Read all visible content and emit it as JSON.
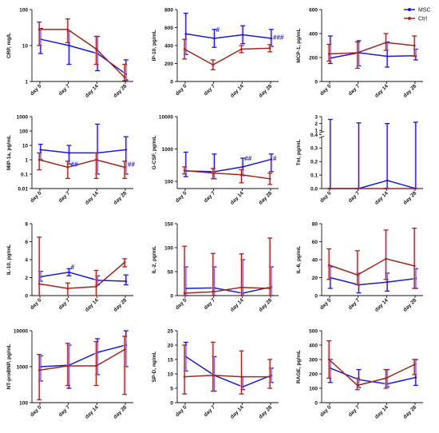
{
  "colors": {
    "MSC": "#1a1adb",
    "Ctrl": "#a0281e",
    "shade": "#f3c6de"
  },
  "legend": [
    {
      "name": "MSC",
      "color": "#1a1adb"
    },
    {
      "name": "Ctrl",
      "color": "#a0281e"
    }
  ],
  "chart_data": [
    {
      "type": "line",
      "ylabel": "CRP, mg/L",
      "scale": "log",
      "ylim": [
        1,
        100
      ],
      "yticks": [
        1,
        10,
        100
      ],
      "ytick_labels": [
        "1",
        "10",
        "100"
      ],
      "categories": [
        "day 0",
        "day 7",
        "day 14",
        "day 28"
      ],
      "series": [
        {
          "name": "MSC",
          "values": [
            15,
            10,
            6,
            1.6
          ],
          "upper": [
            30,
            25,
            18,
            4
          ],
          "lower": [
            6,
            3,
            2,
            1.1
          ]
        },
        {
          "name": "Ctrl",
          "values": [
            28,
            28,
            8,
            1.3
          ],
          "upper": [
            45,
            55,
            18,
            3
          ],
          "lower": [
            10,
            12,
            3,
            1.05
          ]
        }
      ],
      "annotations": []
    },
    {
      "type": "line",
      "ylabel": "IP-10, pg/mL",
      "scale": "linear",
      "ylim": [
        0,
        800
      ],
      "yticks": [
        0,
        200,
        400,
        600,
        800
      ],
      "ytick_labels": [
        "0",
        "200",
        "400",
        "600",
        "800"
      ],
      "categories": [
        "day 0",
        "day 7",
        "day 14",
        "day 28"
      ],
      "series": [
        {
          "name": "MSC",
          "values": [
            530,
            480,
            520,
            480
          ],
          "upper": [
            760,
            580,
            620,
            580
          ],
          "lower": [
            300,
            380,
            420,
            390
          ]
        },
        {
          "name": "Ctrl",
          "values": [
            360,
            185,
            360,
            370
          ],
          "upper": [
            470,
            240,
            400,
            410
          ],
          "lower": [
            250,
            130,
            320,
            330
          ]
        }
      ],
      "annotations": [
        {
          "text": "#",
          "cat": 1,
          "y": 580
        },
        {
          "text": "###",
          "cat": 3,
          "y": 495
        }
      ]
    },
    {
      "type": "line",
      "ylabel": "MCP-1, pg/mL",
      "scale": "linear",
      "ylim": [
        0,
        600
      ],
      "yticks": [
        0,
        200,
        400,
        600
      ],
      "ytick_labels": [
        "0",
        "200",
        "400",
        "600"
      ],
      "categories": [
        "day 0",
        "day 7",
        "day 14",
        "day 28"
      ],
      "series": [
        {
          "name": "MSC",
          "values": [
            195,
            240,
            210,
            215
          ],
          "upper": [
            380,
            340,
            330,
            270
          ],
          "lower": [
            150,
            130,
            120,
            180
          ]
        },
        {
          "name": "Ctrl",
          "values": [
            230,
            240,
            325,
            300
          ],
          "upper": [
            310,
            330,
            400,
            380
          ],
          "lower": [
            170,
            110,
            260,
            210
          ]
        }
      ],
      "annotations": []
    },
    {
      "type": "line",
      "ylabel": "MIP-1a, pg/mL",
      "scale": "log",
      "ylim": [
        0.01,
        1000
      ],
      "yticks": [
        0.01,
        0.1,
        1,
        10,
        100,
        1000
      ],
      "ytick_labels": [
        "0.01",
        "0.1",
        "1",
        "10",
        "100",
        "1000"
      ],
      "categories": [
        "day 0",
        "day 7",
        "day 14",
        "day 28"
      ],
      "series": [
        {
          "name": "MSC",
          "values": [
            5,
            3,
            3,
            5
          ],
          "upper": [
            12,
            10,
            300,
            40
          ],
          "lower": [
            1,
            0.5,
            0.1,
            0.1
          ]
        },
        {
          "name": "Ctrl",
          "values": [
            1,
            0.3,
            1,
            0.3
          ],
          "upper": [
            3,
            0.8,
            3,
            0.8
          ],
          "lower": [
            0.2,
            0.05,
            0.05,
            0.05
          ]
        }
      ],
      "annotations": [
        {
          "text": "##",
          "cat": 1,
          "y": 0.5
        },
        {
          "text": "##",
          "cat": 3,
          "y": 0.5
        }
      ]
    },
    {
      "type": "line",
      "ylabel": "G-CSF, pg/mL",
      "scale": "log",
      "ylim": [
        60,
        10000
      ],
      "yticks": [
        100,
        1000,
        10000
      ],
      "ytick_labels": [
        "100",
        "1000",
        "10000"
      ],
      "categories": [
        "day 0",
        "day 7",
        "day 14",
        "day 28"
      ],
      "series": [
        {
          "name": "MSC",
          "values": [
            210,
            200,
            280,
            480
          ],
          "upper": [
            800,
            700,
            520,
            700
          ],
          "lower": [
            140,
            120,
            150,
            200
          ]
        },
        {
          "name": "Ctrl",
          "values": [
            215,
            180,
            160,
            120
          ],
          "upper": [
            280,
            250,
            230,
            180
          ],
          "lower": [
            170,
            120,
            90,
            80
          ]
        }
      ],
      "annotations": [
        {
          "text": "##",
          "cat": 2,
          "y": 520
        },
        {
          "text": "#",
          "cat": 3,
          "y": 520
        }
      ]
    },
    {
      "type": "line",
      "ylabel": "TnI, pg/mL",
      "scale": "broken",
      "ylim": [
        0,
        3
      ],
      "break": {
        "low_max": 0.4,
        "high_min": 0.4,
        "high_max": 3,
        "split": 0.75
      },
      "yticks": [
        0,
        0.1,
        0.2,
        0.3,
        0.4,
        1,
        2,
        3
      ],
      "ytick_labels": [
        "0.0",
        "0.1",
        "0.2",
        "0.3",
        "0.4",
        "1",
        "2",
        "3"
      ],
      "categories": [
        "day 0",
        "day 7",
        "day 14",
        "day 28"
      ],
      "series": [
        {
          "name": "MSC",
          "values": [
            0,
            0,
            0.06,
            0
          ],
          "upper": [
            2.6,
            2.1,
            2.0,
            2.2
          ],
          "lower": [
            0,
            0,
            0,
            0
          ]
        },
        {
          "name": "Ctrl",
          "values": [
            0,
            0,
            0,
            0
          ],
          "upper": [
            0,
            0,
            0,
            0
          ],
          "lower": [
            0,
            0,
            0,
            0
          ]
        }
      ],
      "annotations": []
    },
    {
      "type": "line",
      "ylabel": "IL-10, pg/mL",
      "scale": "linear",
      "ylim": [
        0,
        8
      ],
      "yticks": [
        0,
        2,
        4,
        6,
        8
      ],
      "ytick_labels": [
        "0",
        "2",
        "4",
        "6",
        "8"
      ],
      "categories": [
        "day 0",
        "day 7",
        "day 14",
        "day 28"
      ],
      "series": [
        {
          "name": "MSC",
          "values": [
            2.1,
            2.6,
            1.7,
            1.6
          ],
          "upper": [
            2.7,
            3.0,
            2.2,
            2.3
          ],
          "lower": [
            1.6,
            2.2,
            1.2,
            1.2
          ]
        },
        {
          "name": "Ctrl",
          "values": [
            1.3,
            0.8,
            1.0,
            3.7
          ],
          "upper": [
            6.5,
            1.4,
            2.8,
            4.1
          ],
          "lower": [
            0,
            0,
            0,
            3.2
          ]
        }
      ],
      "annotations": [
        {
          "text": "#",
          "cat": 1,
          "y": 3.2
        }
      ]
    },
    {
      "type": "line",
      "ylabel": "IL-2, pg/mL",
      "scale": "linear",
      "ylim": [
        0,
        150
      ],
      "yticks": [
        0,
        50,
        100,
        150
      ],
      "ytick_labels": [
        "0",
        "50",
        "100",
        "150"
      ],
      "categories": [
        "day 0",
        "day 7",
        "day 14",
        "day 28"
      ],
      "series": [
        {
          "name": "MSC",
          "values": [
            15,
            16,
            5,
            18
          ],
          "upper": [
            60,
            60,
            75,
            60
          ],
          "lower": [
            0,
            0,
            0,
            0
          ]
        },
        {
          "name": "Ctrl",
          "values": [
            5,
            8,
            17,
            15
          ],
          "upper": [
            103,
            88,
            87,
            120
          ],
          "lower": [
            0,
            0,
            0,
            0
          ]
        }
      ],
      "annotations": []
    },
    {
      "type": "line",
      "ylabel": "IL-6, pg/mL",
      "scale": "linear",
      "ylim": [
        0,
        80
      ],
      "yticks": [
        0,
        20,
        40,
        60,
        80
      ],
      "ytick_labels": [
        "0",
        "20",
        "40",
        "60",
        "80"
      ],
      "categories": [
        "day 0",
        "day 7",
        "day 14",
        "day 28"
      ],
      "series": [
        {
          "name": "MSC",
          "values": [
            20,
            12,
            15,
            19
          ],
          "upper": [
            32,
            25,
            25,
            30
          ],
          "lower": [
            8,
            3,
            5,
            8
          ]
        },
        {
          "name": "Ctrl",
          "values": [
            34,
            23,
            41,
            33
          ],
          "upper": [
            52,
            50,
            73,
            75
          ],
          "lower": [
            18,
            12,
            18,
            8
          ]
        }
      ],
      "annotations": []
    },
    {
      "type": "line",
      "ylabel": "NT-proBNP, pg/mL",
      "scale": "log",
      "ylim": [
        100,
        10000
      ],
      "yticks": [
        100,
        1000,
        10000
      ],
      "ytick_labels": [
        "100",
        "1000",
        "10000"
      ],
      "categories": [
        "day 0",
        "day 7",
        "day 14",
        "day 28"
      ],
      "series": [
        {
          "name": "MSC",
          "values": [
            1000,
            1100,
            2500,
            4000
          ],
          "upper": [
            2000,
            4000,
            6000,
            10000
          ],
          "lower": [
            400,
            250,
            600,
            1000
          ]
        },
        {
          "name": "Ctrl",
          "values": [
            800,
            1050,
            1050,
            3000
          ],
          "upper": [
            2200,
            4500,
            5000,
            7000
          ],
          "lower": [
            120,
            300,
            300,
            170
          ]
        }
      ],
      "annotations": []
    },
    {
      "type": "line",
      "ylabel": "SP-D, ng/mL",
      "scale": "linear",
      "ylim": [
        0,
        25
      ],
      "yticks": [
        0,
        5,
        10,
        15,
        20,
        25
      ],
      "ytick_labels": [
        "0",
        "5",
        "10",
        "15",
        "20",
        "25"
      ],
      "categories": [
        "day 0",
        "day 7",
        "day 14",
        "day 28"
      ],
      "series": [
        {
          "name": "MSC",
          "values": [
            16,
            9.5,
            5.5,
            9.5
          ],
          "upper": [
            21,
            16,
            9,
            12
          ],
          "lower": [
            11,
            4,
            4.5,
            7
          ]
        },
        {
          "name": "Ctrl",
          "values": [
            9,
            9.5,
            9,
            9
          ],
          "upper": [
            20,
            21,
            18,
            15
          ],
          "lower": [
            3,
            4,
            3,
            5
          ]
        }
      ],
      "annotations": []
    },
    {
      "type": "line",
      "ylabel": "RAGE, pg/mL",
      "scale": "linear",
      "ylim": [
        0,
        500
      ],
      "yticks": [
        0,
        100,
        200,
        300,
        400,
        500
      ],
      "ytick_labels": [
        "0",
        "100",
        "200",
        "300",
        "400",
        "500"
      ],
      "categories": [
        "day 0",
        "day 7",
        "day 14",
        "day 28"
      ],
      "series": [
        {
          "name": "MSC",
          "values": [
            240,
            160,
            130,
            175
          ],
          "upper": [
            300,
            230,
            230,
            300
          ],
          "lower": [
            140,
            105,
            110,
            120
          ]
        },
        {
          "name": "Ctrl",
          "values": [
            300,
            120,
            170,
            265
          ],
          "upper": [
            430,
            170,
            230,
            300
          ],
          "lower": [
            170,
            90,
            100,
            195
          ]
        }
      ],
      "annotations": []
    }
  ]
}
